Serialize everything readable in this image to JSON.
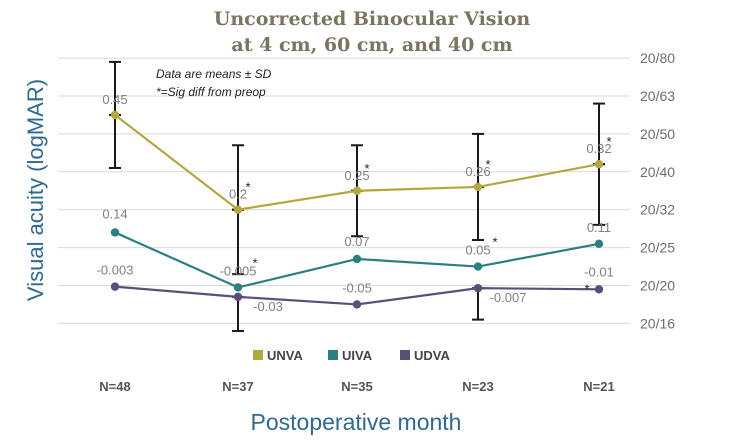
{
  "chart_data": {
    "type": "line",
    "title_lines": [
      "Uncorrected Binocular Vision",
      "at 4 cm, 60 cm, and 40 cm"
    ],
    "xlabel": "Postoperative month",
    "ylabel": "Visual acuity (logMAR)",
    "categories": [
      "N=48",
      "N=37",
      "N=35",
      "N=23",
      "N=21"
    ],
    "y_right_ticks": [
      "20/80",
      "20/63",
      "20/50",
      "20/40",
      "20/32",
      "20/25",
      "20/20",
      "20/16"
    ],
    "y_right_tick_values": [
      0.6,
      0.5,
      0.4,
      0.3,
      0.2,
      0.1,
      0.0,
      -0.1
    ],
    "ylim": [
      -0.1,
      0.6
    ],
    "grid": true,
    "legend_position": "bottom",
    "notes": [
      "Data are means ± SD",
      "*=Sig diff from preop"
    ],
    "series": [
      {
        "name": "UNVA",
        "color": "#b3a83c",
        "values": [
          0.45,
          0.2,
          0.25,
          0.26,
          0.32
        ],
        "labels": [
          "0.45",
          "0.2",
          "0.25",
          "0.26",
          "0.32"
        ],
        "error_top": [
          0.59,
          0.37,
          0.37,
          0.4,
          0.48
        ],
        "error_bottom": [
          0.31,
          0.03,
          0.13,
          0.12,
          0.16
        ],
        "sig": [
          false,
          true,
          true,
          true,
          true
        ]
      },
      {
        "name": "UIVA",
        "color": "#2a8080",
        "values": [
          0.14,
          -0.005,
          0.07,
          0.05,
          0.11
        ],
        "labels": [
          "0.14",
          "-0.005",
          "0.07",
          "0.05",
          "0.11"
        ],
        "sig": [
          false,
          true,
          false,
          true,
          false
        ]
      },
      {
        "name": "UDVA",
        "color": "#585078",
        "values": [
          -0.003,
          -0.03,
          -0.05,
          -0.007,
          -0.01
        ],
        "labels": [
          "-0.003",
          "-0.03",
          "-0.05",
          "-0.007",
          "-0.01"
        ],
        "error_bottom": [
          -0.003,
          -0.12,
          -0.05,
          -0.09,
          -0.01
        ],
        "sig": [
          false,
          false,
          false,
          false,
          true
        ]
      }
    ]
  }
}
